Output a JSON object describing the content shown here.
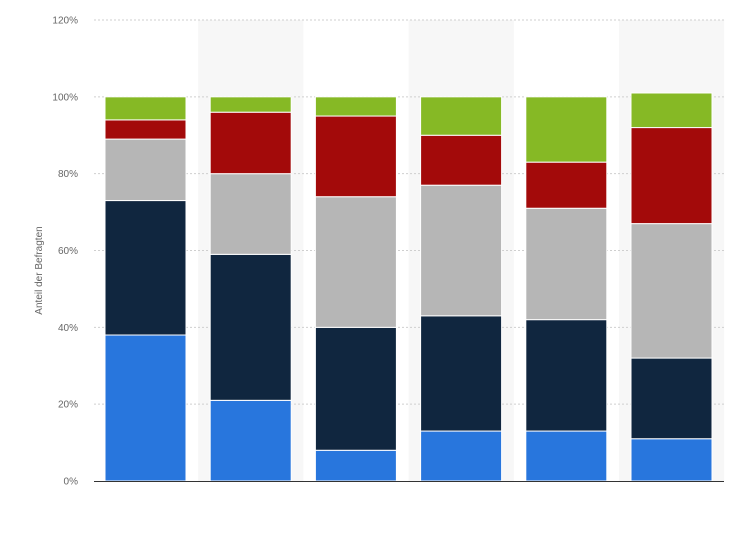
{
  "chart_data": {
    "type": "bar",
    "stacked": true,
    "ylabel": "Anteil der Befragten",
    "ylim": [
      0,
      120
    ],
    "y_ticks": [
      0,
      20,
      40,
      60,
      80,
      100,
      120
    ],
    "y_tick_labels": [
      "0%",
      "20%",
      "40%",
      "60%",
      "80%",
      "100%",
      "120%"
    ],
    "grid": true,
    "categories": [
      "",
      "",
      "",
      "",
      "",
      ""
    ],
    "series": [
      {
        "color": "#2876dd",
        "values": [
          38,
          21,
          8,
          13,
          13,
          11
        ]
      },
      {
        "color": "#10263f",
        "values": [
          35,
          38,
          32,
          30,
          29,
          21
        ]
      },
      {
        "color": "#b6b6b6",
        "values": [
          16,
          21,
          34,
          34,
          29,
          35
        ]
      },
      {
        "color": "#a30a0a",
        "values": [
          5,
          16,
          21,
          13,
          12,
          25
        ]
      },
      {
        "color": "#86b925",
        "values": [
          6,
          4,
          5,
          10,
          17,
          9
        ]
      }
    ]
  }
}
